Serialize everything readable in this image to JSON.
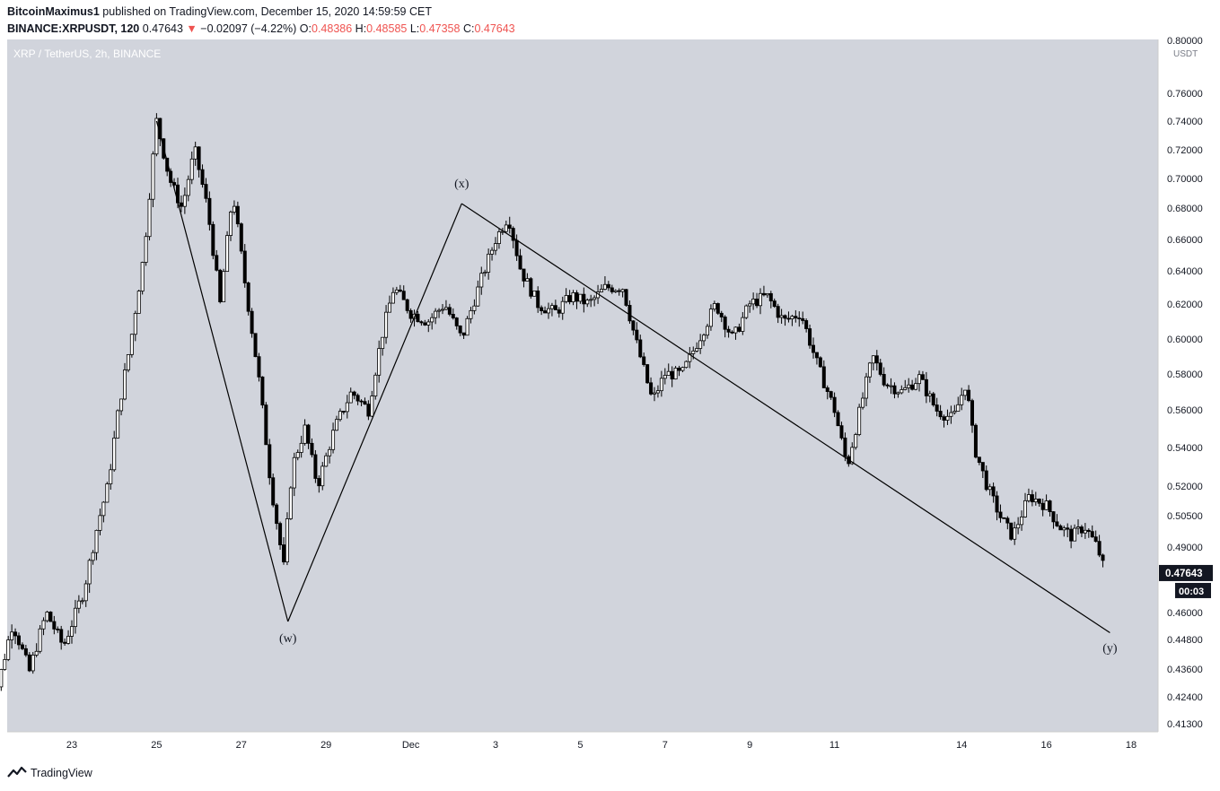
{
  "header": {
    "publisher": "BitcoinMaximus1",
    "published_text": "published on TradingView.com, December 15, 2020 14:59:59 CET",
    "symbol": "BINANCE:XRPUSDT, 120",
    "last": "0.47643",
    "change": "−0.02097 (−4.22%)",
    "o_label": "O:",
    "o_value": "0.48386",
    "h_label": "H:",
    "h_value": "0.48585",
    "l_label": "L:",
    "l_value": "0.47358",
    "c_label": "C:",
    "c_value": "0.47643"
  },
  "chart_data": {
    "type": "candlestick",
    "title": "XRP / TetherUS, 2h, BINANCE",
    "price_unit": "USDT",
    "y_ticks": [
      0.413,
      0.424,
      0.436,
      0.448,
      0.46,
      0.475,
      0.49,
      0.505,
      0.52,
      0.54,
      0.56,
      0.58,
      0.6,
      0.62,
      0.64,
      0.66,
      0.68,
      0.7,
      0.72,
      0.74,
      0.76,
      0.8
    ],
    "y_tick_labels": [
      "0.41300",
      "0.42400",
      "0.43600",
      "0.44800",
      "0.46000",
      "0.47500",
      "0.49000",
      "0.50500",
      "0.52000",
      "0.54000",
      "0.56000",
      "0.58000",
      "0.60000",
      "0.62000",
      "0.64000",
      "0.66000",
      "0.68000",
      "0.70000",
      "0.72000",
      "0.74000",
      "0.76000",
      "0.80000"
    ],
    "x_ticks": [
      {
        "label": "23",
        "day": 23
      },
      {
        "label": "25",
        "day": 25
      },
      {
        "label": "27",
        "day": 27
      },
      {
        "label": "29",
        "day": 29
      },
      {
        "label": "Dec",
        "day": 31
      },
      {
        "label": "3",
        "day": 33
      },
      {
        "label": "5",
        "day": 35
      },
      {
        "label": "7",
        "day": 37
      },
      {
        "label": "9",
        "day": 39
      },
      {
        "label": "11",
        "day": 41
      },
      {
        "label": "14",
        "day": 44
      },
      {
        "label": "16",
        "day": 46
      },
      {
        "label": "18",
        "day": 48
      }
    ],
    "price_path": [
      {
        "day": 21.0,
        "price": 0.41
      },
      {
        "day": 21.6,
        "price": 0.455
      },
      {
        "day": 22.0,
        "price": 0.435
      },
      {
        "day": 22.4,
        "price": 0.46
      },
      {
        "day": 22.8,
        "price": 0.445
      },
      {
        "day": 23.3,
        "price": 0.47
      },
      {
        "day": 23.6,
        "price": 0.5
      },
      {
        "day": 23.85,
        "price": 0.52
      },
      {
        "day": 24.1,
        "price": 0.56
      },
      {
        "day": 24.4,
        "price": 0.6
      },
      {
        "day": 24.7,
        "price": 0.65
      },
      {
        "day": 25.0,
        "price": 0.74
      },
      {
        "day": 25.3,
        "price": 0.7
      },
      {
        "day": 25.6,
        "price": 0.68
      },
      {
        "day": 25.9,
        "price": 0.72
      },
      {
        "day": 26.2,
        "price": 0.68
      },
      {
        "day": 26.5,
        "price": 0.62
      },
      {
        "day": 26.8,
        "price": 0.69
      },
      {
        "day": 27.1,
        "price": 0.63
      },
      {
        "day": 27.4,
        "price": 0.58
      },
      {
        "day": 27.7,
        "price": 0.52
      },
      {
        "day": 28.0,
        "price": 0.48
      },
      {
        "day": 28.2,
        "price": 0.53
      },
      {
        "day": 28.5,
        "price": 0.55
      },
      {
        "day": 28.8,
        "price": 0.52
      },
      {
        "day": 29.2,
        "price": 0.55
      },
      {
        "day": 29.6,
        "price": 0.57
      },
      {
        "day": 30.0,
        "price": 0.56
      },
      {
        "day": 30.3,
        "price": 0.6
      },
      {
        "day": 30.6,
        "price": 0.63
      },
      {
        "day": 31.0,
        "price": 0.615
      },
      {
        "day": 31.4,
        "price": 0.61
      },
      {
        "day": 31.8,
        "price": 0.62
      },
      {
        "day": 32.2,
        "price": 0.6
      },
      {
        "day": 32.6,
        "price": 0.63
      },
      {
        "day": 33.0,
        "price": 0.66
      },
      {
        "day": 33.3,
        "price": 0.675
      },
      {
        "day": 33.6,
        "price": 0.64
      },
      {
        "day": 34.0,
        "price": 0.62
      },
      {
        "day": 34.4,
        "price": 0.615
      },
      {
        "day": 34.8,
        "price": 0.625
      },
      {
        "day": 35.2,
        "price": 0.62
      },
      {
        "day": 35.6,
        "price": 0.63
      },
      {
        "day": 36.0,
        "price": 0.63
      },
      {
        "day": 36.3,
        "price": 0.6
      },
      {
        "day": 36.7,
        "price": 0.565
      },
      {
        "day": 37.0,
        "price": 0.58
      },
      {
        "day": 37.4,
        "price": 0.58
      },
      {
        "day": 37.8,
        "price": 0.6
      },
      {
        "day": 38.2,
        "price": 0.62
      },
      {
        "day": 38.6,
        "price": 0.6
      },
      {
        "day": 39.0,
        "price": 0.62
      },
      {
        "day": 39.4,
        "price": 0.625
      },
      {
        "day": 39.8,
        "price": 0.61
      },
      {
        "day": 40.2,
        "price": 0.615
      },
      {
        "day": 40.6,
        "price": 0.585
      },
      {
        "day": 41.0,
        "price": 0.56
      },
      {
        "day": 41.3,
        "price": 0.53
      },
      {
        "day": 41.6,
        "price": 0.56
      },
      {
        "day": 41.9,
        "price": 0.59
      },
      {
        "day": 42.2,
        "price": 0.575
      },
      {
        "day": 42.6,
        "price": 0.57
      },
      {
        "day": 43.0,
        "price": 0.578
      },
      {
        "day": 43.4,
        "price": 0.56
      },
      {
        "day": 43.8,
        "price": 0.555
      },
      {
        "day": 44.1,
        "price": 0.575
      },
      {
        "day": 44.3,
        "price": 0.54
      },
      {
        "day": 44.6,
        "price": 0.52
      },
      {
        "day": 44.9,
        "price": 0.505
      },
      {
        "day": 45.2,
        "price": 0.495
      },
      {
        "day": 45.6,
        "price": 0.515
      },
      {
        "day": 46.0,
        "price": 0.51
      },
      {
        "day": 46.3,
        "price": 0.5
      },
      {
        "day": 46.6,
        "price": 0.495
      },
      {
        "day": 46.9,
        "price": 0.5
      },
      {
        "day": 47.2,
        "price": 0.49
      },
      {
        "day": 47.4,
        "price": 0.476
      }
    ],
    "current_price": 0.47643,
    "current_price_label": "0.47643",
    "countdown_label": "00:03",
    "wave_lines": [
      {
        "from": {
          "day": 25.0,
          "price": 0.74
        },
        "to": {
          "day": 28.1,
          "price": 0.456
        }
      },
      {
        "from": {
          "day": 28.1,
          "price": 0.456
        },
        "to": {
          "day": 32.2,
          "price": 0.683
        }
      },
      {
        "from": {
          "day": 32.2,
          "price": 0.683
        },
        "to": {
          "day": 47.5,
          "price": 0.451
        }
      }
    ],
    "wave_labels": [
      {
        "text": "(w)",
        "day": 28.1,
        "price": 0.447
      },
      {
        "text": "(x)",
        "day": 32.2,
        "price": 0.694
      },
      {
        "text": "(y)",
        "day": 47.5,
        "price": 0.443
      }
    ],
    "colors": {
      "background": "#d1d4dc",
      "candle": "#000000",
      "line": "#000000",
      "price_tag": "#131722"
    }
  },
  "footer": {
    "brand": "TradingView"
  }
}
